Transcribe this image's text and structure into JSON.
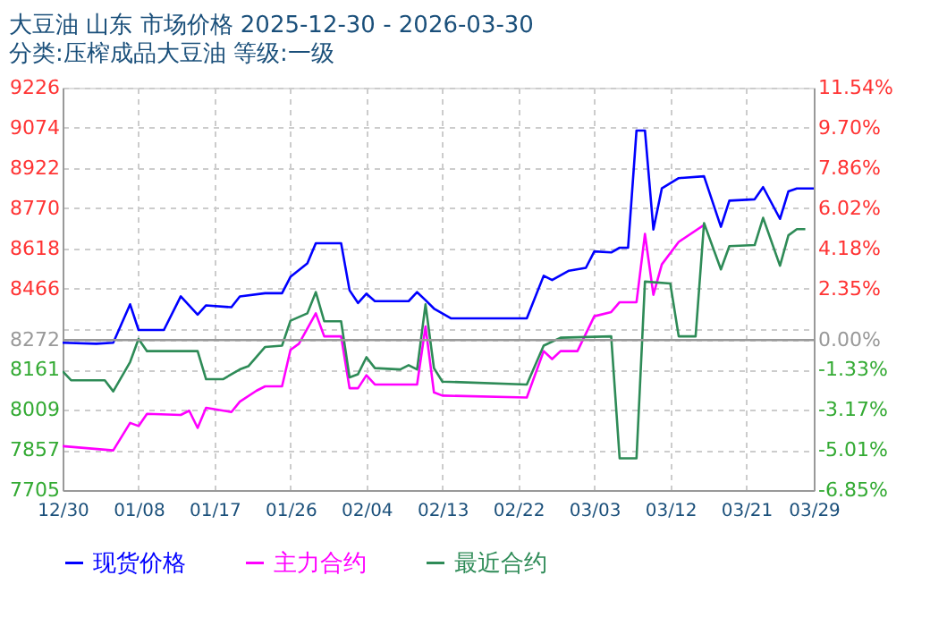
{
  "chart_data": {
    "type": "line",
    "title": "大豆油 山东 市场价格 2025-12-30 - 2026-03-30",
    "subtitle": "分类:压榨成品大豆油 等级:一级",
    "xlim": [
      "2025-12-30",
      "2026-03-29"
    ],
    "xticks": [
      {
        "value": "2025-12-30",
        "label": "12/30"
      },
      {
        "value": "2026-01-08",
        "label": "01/08"
      },
      {
        "value": "2026-01-17",
        "label": "01/17"
      },
      {
        "value": "2026-01-26",
        "label": "01/26"
      },
      {
        "value": "2026-02-04",
        "label": "02/04"
      },
      {
        "value": "2026-02-13",
        "label": "02/13"
      },
      {
        "value": "2026-02-22",
        "label": "02/22"
      },
      {
        "value": "2026-03-03",
        "label": "03/03"
      },
      {
        "value": "2026-03-12",
        "label": "03/12"
      },
      {
        "value": "2026-03-21",
        "label": "03/21"
      },
      {
        "value": "2026-03-29",
        "label": "03/29"
      }
    ],
    "ylim": [
      7705,
      9226
    ],
    "yticks": [
      7705,
      7857,
      8009,
      8161,
      8272,
      {
        "value": 8313,
        "label": null
      },
      8466,
      8618,
      8770,
      8922,
      9074,
      9226
    ],
    "y2lim": [
      -6.85,
      11.54
    ],
    "y2ticks": [
      {
        "value": -6.85,
        "label": "-6.85%"
      },
      {
        "value": -5.01,
        "label": "-5.01%"
      },
      {
        "value": -3.17,
        "label": "-3.17%"
      },
      {
        "value": -1.33,
        "label": "-1.33%"
      },
      {
        "value": 0,
        "label": "0.00%"
      },
      {
        "value": 2.35,
        "label": "2.35%"
      },
      {
        "value": 4.18,
        "label": "4.18%"
      },
      {
        "value": 6.02,
        "label": "6.02%"
      },
      {
        "value": 7.86,
        "label": "7.86%"
      },
      {
        "value": 9.7,
        "label": "9.70%"
      },
      {
        "value": 11.54,
        "label": "11.54%"
      }
    ],
    "ref_lines": [
      {
        "axis": "y",
        "value": 8272,
        "color": "#999999"
      }
    ],
    "grid": true,
    "legend": "bottom",
    "line_style": "solid",
    "marker": "none",
    "series": [
      {
        "name": "现货价格",
        "color": "#0000ff",
        "x": [
          "2025-12-30",
          "2026-01-03",
          "2026-01-05",
          "2026-01-07",
          "2026-01-08",
          "2026-01-11",
          "2026-01-13",
          "2026-01-15",
          "2026-01-16",
          "2026-01-19",
          "2026-01-20",
          "2026-01-23",
          "2026-01-25",
          "2026-01-26",
          "2026-01-28",
          "2026-01-29",
          "2026-02-01",
          "2026-02-02",
          "2026-02-03",
          "2026-02-04",
          "2026-02-05",
          "2026-02-09",
          "2026-02-10",
          "2026-02-11",
          "2026-02-12",
          "2026-02-14",
          "2026-02-23",
          "2026-02-25",
          "2026-02-26",
          "2026-02-28",
          "2026-03-02",
          "2026-03-03",
          "2026-03-05",
          "2026-03-06",
          "2026-03-07",
          "2026-03-08",
          "2026-03-09",
          "2026-03-10",
          "2026-03-11",
          "2026-03-13",
          "2026-03-16",
          "2026-03-18",
          "2026-03-19",
          "2026-03-22",
          "2026-03-23",
          "2026-03-25",
          "2026-03-26",
          "2026-03-27",
          "2026-03-29"
        ],
        "values": [
          8262,
          8258,
          8262,
          8407,
          8310,
          8310,
          8437,
          8368,
          8403,
          8396,
          8437,
          8449,
          8449,
          8511,
          8562,
          8638,
          8638,
          8460,
          8412,
          8447,
          8419,
          8419,
          8453,
          8423,
          8391,
          8354,
          8354,
          8515,
          8499,
          8534,
          8545,
          8607,
          8603,
          8621,
          8621,
          9064,
          9064,
          8690,
          8845,
          8884,
          8891,
          8700,
          8799,
          8804,
          8850,
          8730,
          8834,
          8845,
          8845
        ]
      },
      {
        "name": "主力合约",
        "color": "#ff00ff",
        "x": [
          "2025-12-30",
          "2026-01-05",
          "2026-01-07",
          "2026-01-08",
          "2026-01-09",
          "2026-01-13",
          "2026-01-14",
          "2026-01-15",
          "2026-01-16",
          "2026-01-19",
          "2026-01-20",
          "2026-01-22",
          "2026-01-23",
          "2026-01-25",
          "2026-01-26",
          "2026-01-27",
          "2026-01-29",
          "2026-01-30",
          "2026-02-01",
          "2026-02-02",
          "2026-02-03",
          "2026-02-04",
          "2026-02-05",
          "2026-02-10",
          "2026-02-11",
          "2026-02-12",
          "2026-02-13",
          "2026-02-23",
          "2026-02-25",
          "2026-02-26",
          "2026-02-27",
          "2026-03-01",
          "2026-03-03",
          "2026-03-05",
          "2026-03-06",
          "2026-03-08",
          "2026-03-09",
          "2026-03-10",
          "2026-03-11",
          "2026-03-13",
          "2026-03-16"
        ],
        "values": [
          7871,
          7855,
          7959,
          7947,
          7993,
          7989,
          8005,
          7940,
          8016,
          8000,
          8039,
          8081,
          8097,
          8097,
          8235,
          8258,
          8373,
          8286,
          8286,
          8090,
          8090,
          8139,
          8104,
          8104,
          8323,
          8074,
          8062,
          8055,
          8230,
          8200,
          8230,
          8230,
          8362,
          8378,
          8415,
          8415,
          8673,
          8443,
          8558,
          8643,
          8707
        ]
      },
      {
        "name": "最近合约",
        "color": "#2e8b57",
        "x": [
          "2025-12-30",
          "2025-12-31",
          "2026-01-04",
          "2026-01-05",
          "2026-01-07",
          "2026-01-08",
          "2026-01-09",
          "2026-01-15",
          "2026-01-16",
          "2026-01-18",
          "2026-01-20",
          "2026-01-21",
          "2026-01-23",
          "2026-01-25",
          "2026-01-26",
          "2026-01-28",
          "2026-01-29",
          "2026-01-30",
          "2026-02-01",
          "2026-02-02",
          "2026-02-03",
          "2026-02-04",
          "2026-02-05",
          "2026-02-08",
          "2026-02-09",
          "2026-02-10",
          "2026-02-11",
          "2026-02-12",
          "2026-02-13",
          "2026-02-23",
          "2026-02-25",
          "2026-02-27",
          "2026-03-05",
          "2026-03-06",
          "2026-03-08",
          "2026-03-09",
          "2026-03-12",
          "2026-03-13",
          "2026-03-15",
          "2026-03-16",
          "2026-03-18",
          "2026-03-19",
          "2026-03-22",
          "2026-03-23",
          "2026-03-25",
          "2026-03-26",
          "2026-03-27",
          "2026-03-28"
        ],
        "values": [
          8154,
          8120,
          8120,
          8078,
          8189,
          8276,
          8230,
          8230,
          8124,
          8124,
          8161,
          8173,
          8246,
          8251,
          8345,
          8373,
          8453,
          8343,
          8343,
          8131,
          8143,
          8207,
          8166,
          8161,
          8177,
          8161,
          8407,
          8166,
          8115,
          8104,
          8251,
          8281,
          8286,
          7825,
          7825,
          8493,
          8486,
          8286,
          8286,
          8714,
          8539,
          8627,
          8631,
          8734,
          8553,
          8668,
          8691,
          8691
        ]
      }
    ]
  }
}
